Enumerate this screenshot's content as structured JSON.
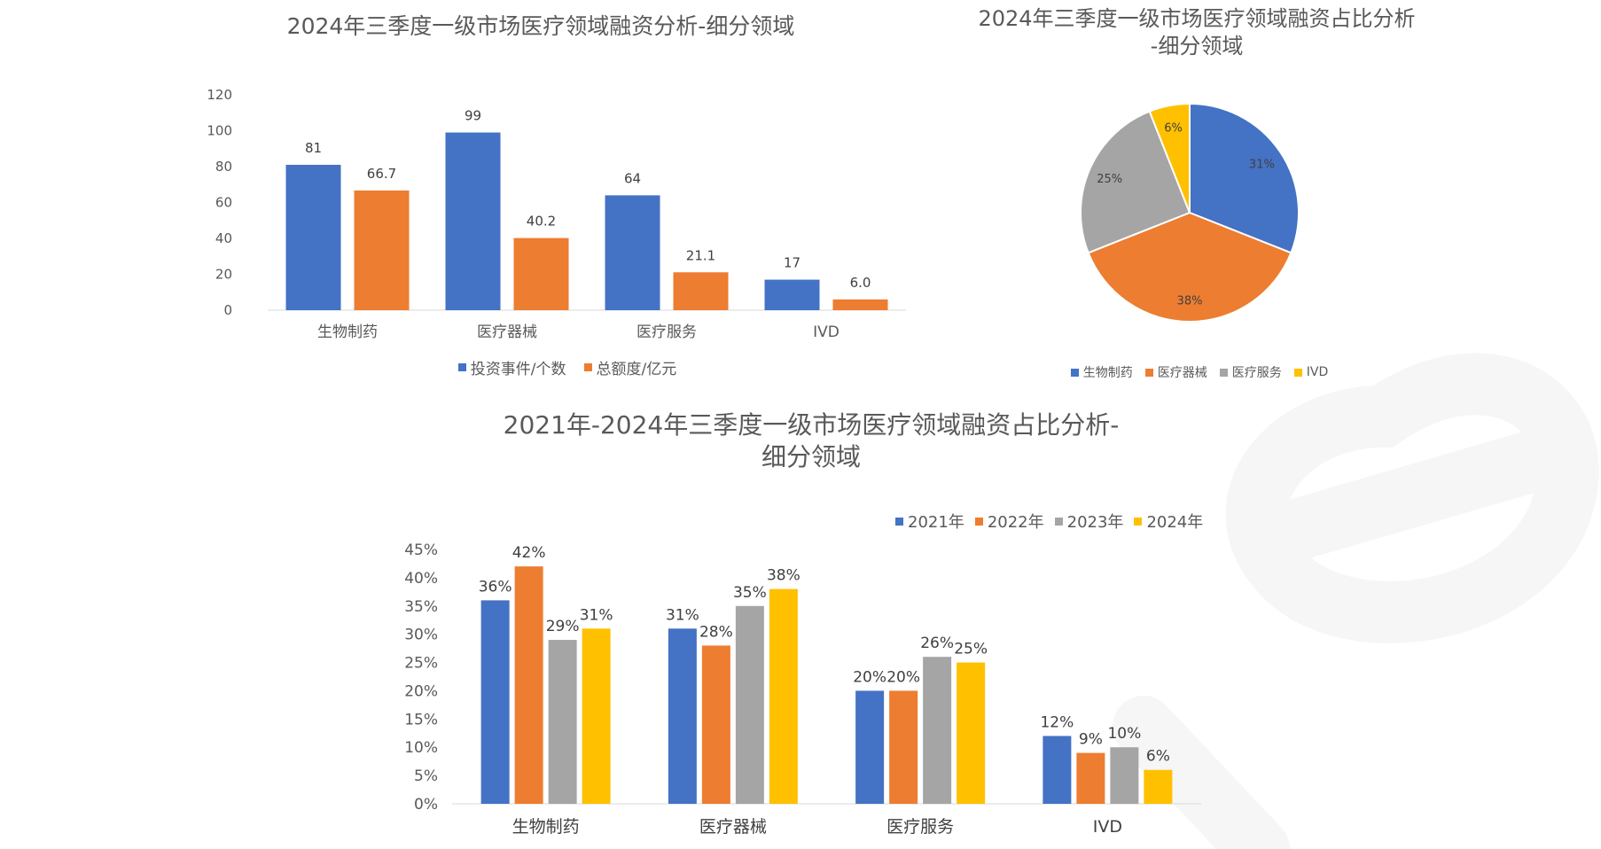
{
  "chart_data": [
    {
      "type": "bar",
      "title": "2024年三季度一级市场医疗领域融资分析-细分领域",
      "categories": [
        "生物制药",
        "医疗器械",
        "医疗服务",
        "IVD"
      ],
      "series": [
        {
          "name": "投资事件/个数",
          "values": [
            81,
            99,
            64,
            17
          ],
          "labels": [
            "81",
            "99",
            "64",
            "17"
          ],
          "color": "#4472C4"
        },
        {
          "name": "总额度/亿元",
          "values": [
            66.7,
            40.2,
            21.1,
            6.0
          ],
          "labels": [
            "66.7",
            "40.2",
            "21.1",
            "6.0"
          ],
          "color": "#ED7D31"
        }
      ],
      "yticks": [
        "0",
        "20",
        "40",
        "60",
        "80",
        "100",
        "120"
      ],
      "ylim": [
        0,
        120
      ],
      "grid": false,
      "legend": "bottom"
    },
    {
      "type": "pie",
      "title": "2024年三季度一级市场医疗领域融资占比分析-细分领域",
      "title_lines": [
        "2024年三季度一级市场医疗领域融资占比分析",
        "-细分领域"
      ],
      "categories": [
        "生物制药",
        "医疗器械",
        "医疗服务",
        "IVD"
      ],
      "values": [
        31,
        38,
        25,
        6
      ],
      "labels": [
        "31%",
        "38%",
        "25%",
        "6%"
      ],
      "colors": [
        "#4472C4",
        "#ED7D31",
        "#A5A5A5",
        "#FFC000"
      ],
      "legend": "bottom"
    },
    {
      "type": "bar",
      "title": "2021年-2024年三季度一级市场医疗领域融资占比分析-细分领域",
      "title_lines": [
        "2021年-2024年三季度一级市场医疗领域融资占比分析-",
        "细分领域"
      ],
      "categories": [
        "生物制药",
        "医疗器械",
        "医疗服务",
        "IVD"
      ],
      "series": [
        {
          "name": "2021年",
          "values": [
            36,
            31,
            20,
            12
          ],
          "labels": [
            "36%",
            "31%",
            "20%",
            "12%"
          ],
          "color": "#4472C4"
        },
        {
          "name": "2022年",
          "values": [
            42,
            28,
            20,
            9
          ],
          "labels": [
            "42%",
            "28%",
            "20%",
            "9%"
          ],
          "color": "#ED7D31"
        },
        {
          "name": "2023年",
          "values": [
            29,
            35,
            26,
            10
          ],
          "labels": [
            "29%",
            "35%",
            "26%",
            "10%"
          ],
          "color": "#A5A5A5"
        },
        {
          "name": "2024年",
          "values": [
            31,
            38,
            25,
            6
          ],
          "labels": [
            "31%",
            "38%",
            "25%",
            "6%"
          ],
          "color": "#FFC000"
        }
      ],
      "yticks": [
        "0%",
        "5%",
        "10%",
        "15%",
        "20%",
        "25%",
        "30%",
        "35%",
        "40%",
        "45%"
      ],
      "ylim": [
        0,
        45
      ],
      "grid": false,
      "legend": "top"
    }
  ]
}
